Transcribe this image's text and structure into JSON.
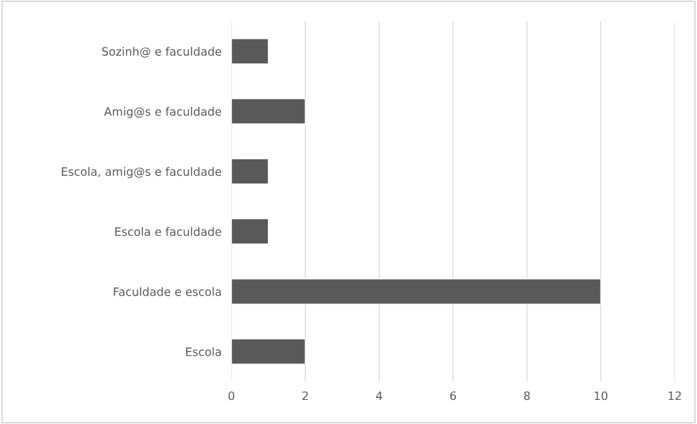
{
  "chart_data": {
    "type": "bar",
    "orientation": "horizontal",
    "categories": [
      "Sozinh@ e faculdade",
      "Amig@s e faculdade",
      "Escola, amig@s e faculdade",
      "Escola e faculdade",
      "Faculdade e escola",
      "Escola"
    ],
    "values": [
      1,
      2,
      1,
      1,
      10,
      2
    ],
    "color": "#595959",
    "xlim": [
      0,
      12
    ],
    "xticks": [
      0,
      2,
      4,
      6,
      8,
      10,
      12
    ],
    "grid": "x",
    "legend": false
  }
}
